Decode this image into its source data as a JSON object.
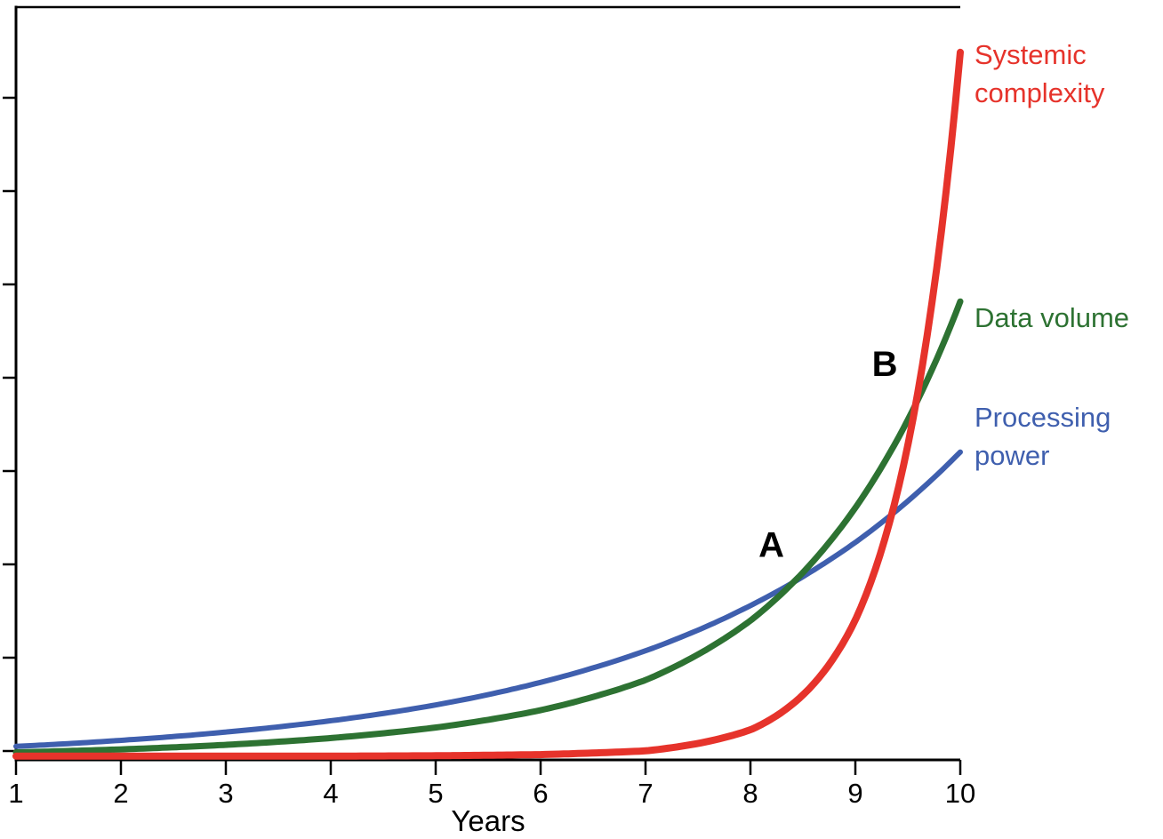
{
  "chart_data": {
    "type": "line",
    "title": "",
    "xlabel": "Years",
    "ylabel": "",
    "x": [
      1,
      2,
      3,
      4,
      5,
      6,
      7,
      8,
      9,
      10
    ],
    "x_tick_labels": [
      "1",
      "2",
      "3",
      "4",
      "5",
      "6",
      "7",
      "8",
      "9",
      "10"
    ],
    "xlim": [
      1,
      10
    ],
    "ylim": [
      0,
      100
    ],
    "y_axis_labeled": false,
    "y_tick_count": 8,
    "grid": false,
    "legend_position": "right-outside",
    "series": [
      {
        "name": "Systemic complexity",
        "color": "#e6332b",
        "values": [
          0.5,
          0.5,
          0.5,
          0.5,
          0.55,
          0.7,
          1.2,
          4.0,
          18.6,
          94.0
        ]
      },
      {
        "name": "Data volume",
        "color": "#2d7232",
        "values": [
          1.0,
          1.4,
          2.0,
          2.9,
          4.3,
          6.6,
          10.6,
          18.5,
          33.5,
          60.9
        ]
      },
      {
        "name": "Processing power",
        "color": "#3f5fae",
        "values": [
          1.8,
          2.6,
          3.7,
          5.2,
          7.3,
          10.3,
          14.5,
          20.5,
          28.9,
          40.9
        ]
      }
    ],
    "annotations": [
      {
        "label": "A",
        "x": 8.2,
        "y": 27
      },
      {
        "label": "B",
        "x": 9.28,
        "y": 51
      }
    ]
  }
}
